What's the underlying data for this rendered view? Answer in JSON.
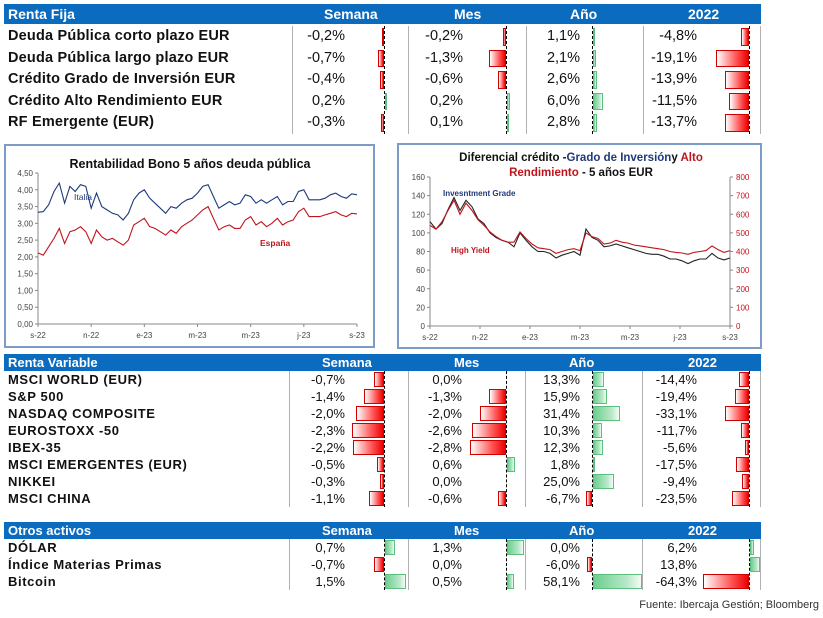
{
  "colors": {
    "header_bg": "#0b6bbf",
    "header_text": "#ffffff",
    "negative": "#ee0000",
    "positive": "#6ccf8f",
    "italia": "#1f3a7a",
    "espana": "#c0141c",
    "ig": "#222222",
    "hy": "#c0141c"
  },
  "renta_fija": {
    "header": {
      "title": "Renta Fija",
      "semana": "Semana",
      "mes": "Mes",
      "ano": "Año",
      "y2022": "2022"
    },
    "rows": [
      {
        "label": "Deuda Pública corto plazo EUR",
        "semana": "-0,2%",
        "mes": "-0,2%",
        "ano": "1,1%",
        "y2022": "-4,8%",
        "v": [
          -0.2,
          -0.2,
          1.1,
          -4.8
        ]
      },
      {
        "label": "Deuda Pública largo plazo EUR",
        "semana": "-0,7%",
        "mes": "-1,3%",
        "ano": "2,1%",
        "y2022": "-19,1%",
        "v": [
          -0.7,
          -1.3,
          2.1,
          -19.1
        ]
      },
      {
        "label": "Crédito Grado de Inversión EUR",
        "semana": "-0,4%",
        "mes": "-0,6%",
        "ano": "2,6%",
        "y2022": "-13,9%",
        "v": [
          -0.4,
          -0.6,
          2.6,
          -13.9
        ]
      },
      {
        "label": "Crédito Alto Rendimiento EUR",
        "semana": "0,2%",
        "mes": "0,2%",
        "ano": "6,0%",
        "y2022": "-11,5%",
        "v": [
          0.2,
          0.2,
          6.0,
          -11.5
        ]
      },
      {
        "label": "RF Emergente (EUR)",
        "semana": "-0,3%",
        "mes": "0,1%",
        "ano": "2,8%",
        "y2022": "-13,7%",
        "v": [
          -0.3,
          0.1,
          2.8,
          -13.7
        ]
      }
    ]
  },
  "renta_variable": {
    "header": {
      "title": "Renta Variable",
      "semana": "Semana",
      "mes": "Mes",
      "ano": "Año",
      "y2022": "2022"
    },
    "rows": [
      {
        "label": "MSCI WORLD (EUR)",
        "semana": "-0,7%",
        "mes": "0,0%",
        "ano": "13,3%",
        "y2022": "-14,4%",
        "v": [
          -0.7,
          0.0,
          13.3,
          -14.4
        ]
      },
      {
        "label": "S&P 500",
        "semana": "-1,4%",
        "mes": "-1,3%",
        "ano": "15,9%",
        "y2022": "-19,4%",
        "v": [
          -1.4,
          -1.3,
          15.9,
          -19.4
        ]
      },
      {
        "label": "NASDAQ COMPOSITE",
        "semana": "-2,0%",
        "mes": "-2,0%",
        "ano": "31,4%",
        "y2022": "-33,1%",
        "v": [
          -2.0,
          -2.0,
          31.4,
          -33.1
        ]
      },
      {
        "label": "EUROSTOXX -50",
        "semana": "-2,3%",
        "mes": "-2,6%",
        "ano": "10,3%",
        "y2022": "-11,7%",
        "v": [
          -2.3,
          -2.6,
          10.3,
          -11.7
        ]
      },
      {
        "label": "IBEX-35",
        "semana": "-2,2%",
        "mes": "-2,8%",
        "ano": "12,3%",
        "y2022": "-5,6%",
        "v": [
          -2.2,
          -2.8,
          12.3,
          -5.6
        ]
      },
      {
        "label": "MSCI EMERGENTES (EUR)",
        "semana": "-0,5%",
        "mes": "0,6%",
        "ano": "1,8%",
        "y2022": "-17,5%",
        "v": [
          -0.5,
          0.6,
          1.8,
          -17.5
        ]
      },
      {
        "label": "NIKKEI",
        "semana": "-0,3%",
        "mes": "0,0%",
        "ano": "25,0%",
        "y2022": "-9,4%",
        "v": [
          -0.3,
          0.0,
          25.0,
          -9.4
        ]
      },
      {
        "label": "MSCI CHINA",
        "semana": "-1,1%",
        "mes": "-0,6%",
        "ano": "-6,7%",
        "y2022": "-23,5%",
        "v": [
          -1.1,
          -0.6,
          -6.7,
          -23.5
        ]
      }
    ]
  },
  "otros_activos": {
    "header": {
      "title": "Otros activos",
      "semana": "Semana",
      "mes": "Mes",
      "ano": "Año",
      "y2022": "2022"
    },
    "rows": [
      {
        "label": "DÓLAR",
        "semana": "0,7%",
        "mes": "1,3%",
        "ano": "0,0%",
        "y2022": "6,2%",
        "v": [
          0.7,
          1.3,
          0.0,
          6.2
        ]
      },
      {
        "label": "Índice Materias Primas",
        "semana": "-0,7%",
        "mes": "0,0%",
        "ano": "-6,0%",
        "y2022": "13,8%",
        "v": [
          -0.7,
          0.0,
          -6.0,
          13.8
        ]
      },
      {
        "label": "Bitcoin",
        "semana": "1,5%",
        "mes": "0,5%",
        "ano": "58,1%",
        "y2022": "-64,3%",
        "v": [
          1.5,
          0.5,
          58.1,
          -64.3
        ]
      }
    ]
  },
  "source": "Fuente: Ibercaja Gestión; Bloomberg",
  "chart_data": [
    {
      "type": "line",
      "title": "Rentabilidad Bono 5 años deuda pública",
      "xlabel": "",
      "ylabel": "",
      "ylim": [
        0,
        4.5
      ],
      "yticks": [
        "0,00",
        "0,50",
        "1,00",
        "1,50",
        "2,00",
        "2,50",
        "3,00",
        "3,50",
        "4,00",
        "4,50"
      ],
      "xticks": [
        "s-22",
        "n-22",
        "e-23",
        "m-23",
        "m-23",
        "j-23",
        "s-23"
      ],
      "legend": "inline",
      "series": [
        {
          "name": "Italia",
          "color": "#1f3a7a",
          "values": [
            3.33,
            3.35,
            3.55,
            3.95,
            4.2,
            3.6,
            4.1,
            3.95,
            4.15,
            4.1,
            3.45,
            3.9,
            3.5,
            3.4,
            3.3,
            3.25,
            3.1,
            3.3,
            3.7,
            3.9,
            4.0,
            3.75,
            3.6,
            3.45,
            3.3,
            3.5,
            3.45,
            3.6,
            3.7,
            3.75,
            3.9,
            4.1,
            4.15,
            3.8,
            3.45,
            3.55,
            3.65,
            3.55,
            3.6,
            3.85,
            3.8,
            3.6,
            3.7,
            3.6,
            3.7,
            3.8,
            3.55,
            3.65,
            3.65,
            3.95,
            4.0,
            3.7,
            3.7,
            3.7,
            3.75,
            3.85,
            3.9,
            3.8,
            3.75,
            3.88,
            3.85
          ]
        },
        {
          "name": "España",
          "color": "#c0141c",
          "values": [
            2.12,
            2.05,
            2.3,
            2.55,
            2.85,
            2.4,
            2.75,
            2.8,
            2.9,
            2.75,
            2.4,
            2.8,
            2.6,
            2.5,
            2.55,
            2.45,
            2.35,
            2.5,
            2.95,
            3.05,
            3.15,
            2.9,
            2.85,
            2.75,
            2.65,
            2.8,
            2.7,
            2.9,
            3.0,
            3.1,
            3.25,
            3.4,
            3.5,
            3.15,
            2.8,
            2.9,
            2.95,
            2.85,
            2.85,
            3.1,
            3.2,
            2.95,
            3.05,
            2.9,
            3.0,
            3.15,
            2.95,
            3.05,
            3.1,
            3.35,
            3.45,
            3.2,
            3.2,
            3.2,
            3.25,
            3.3,
            3.35,
            3.25,
            3.2,
            3.3,
            3.28
          ]
        }
      ]
    },
    {
      "type": "line",
      "title": "Diferencial crédito -Grado de Inversión y Alto Rendimiento - 5 años EUR",
      "title_parts": {
        "a": "Diferencial crédito -",
        "b": "Grado de Inversión",
        "c": "y ",
        "d": "Alto",
        "e": "Rendimiento",
        "f": " - 5 años EUR"
      },
      "ylim_left": [
        0,
        160
      ],
      "ylim_right": [
        0,
        800
      ],
      "yticks_left": [
        "0",
        "20",
        "40",
        "60",
        "80",
        "100",
        "120",
        "140",
        "160"
      ],
      "yticks_right": [
        "0",
        "100",
        "200",
        "300",
        "400",
        "500",
        "600",
        "700",
        "800"
      ],
      "xticks": [
        "s-22",
        "n-22",
        "e-23",
        "m-23",
        "m-23",
        "j-23",
        "s-23"
      ],
      "legend": "inline",
      "series": [
        {
          "name": "Invesntment Grade",
          "axis": "left",
          "color": "#222222",
          "values": [
            112,
            104,
            110,
            125,
            138,
            124,
            135,
            128,
            115,
            110,
            100,
            95,
            92,
            90,
            85,
            100,
            92,
            85,
            80,
            80,
            78,
            73,
            76,
            78,
            80,
            76,
            104,
            95,
            92,
            85,
            86,
            88,
            86,
            84,
            82,
            80,
            78,
            77,
            77,
            75,
            72,
            72,
            70,
            67,
            70,
            72,
            72,
            78,
            73,
            71,
            73
          ]
        },
        {
          "name": "High Yield",
          "axis": "right",
          "color": "#c0141c",
          "values": [
            540,
            520,
            560,
            620,
            675,
            600,
            660,
            620,
            570,
            540,
            505,
            480,
            460,
            450,
            450,
            505,
            470,
            440,
            420,
            415,
            410,
            390,
            400,
            410,
            415,
            405,
            500,
            480,
            470,
            440,
            445,
            460,
            450,
            445,
            435,
            430,
            425,
            420,
            415,
            410,
            400,
            395,
            392,
            385,
            395,
            400,
            405,
            430,
            410,
            395,
            405
          ]
        }
      ]
    }
  ]
}
